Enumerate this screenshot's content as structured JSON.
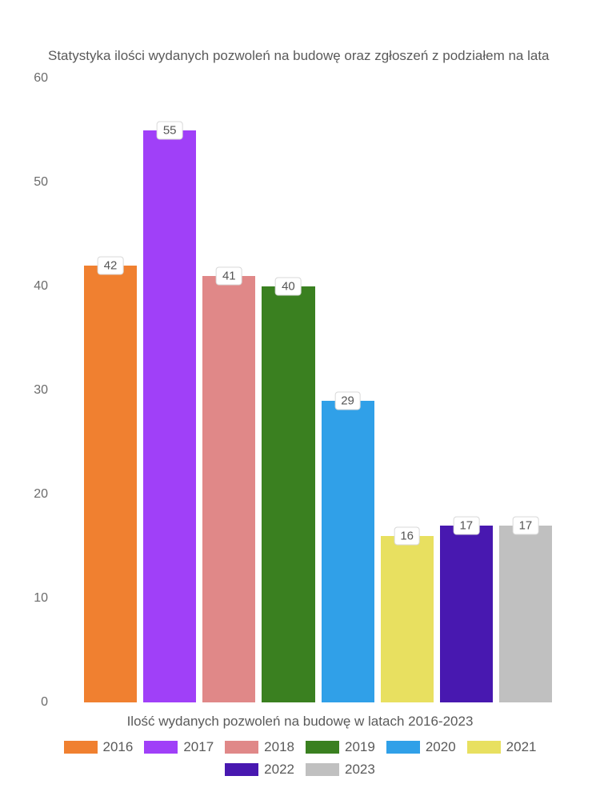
{
  "chart": {
    "type": "bar",
    "title": "Statystyka ilości wydanych pozwoleń na budowę oraz zgłoszeń z podziałem na lata",
    "x_axis_label": "Ilość wydanych pozwoleń na budowę w latach 2016-2023",
    "ylim": [
      0,
      60
    ],
    "ytick_step": 10,
    "yticks": [
      "0",
      "10",
      "20",
      "30",
      "40",
      "50",
      "60"
    ],
    "background_color": "#ffffff",
    "text_color": "#5a5a5a",
    "label_box_border": "#d8d8d8",
    "title_fontsize": 17,
    "axis_fontsize": 16,
    "legend_fontsize": 17,
    "bars": [
      {
        "year": "2016",
        "value": 42,
        "color": "#f08030"
      },
      {
        "year": "2017",
        "value": 55,
        "color": "#a040f8"
      },
      {
        "year": "2018",
        "value": 41,
        "color": "#e08888"
      },
      {
        "year": "2019",
        "value": 40,
        "color": "#3a8020"
      },
      {
        "year": "2020",
        "value": 29,
        "color": "#30a0e8"
      },
      {
        "year": "2021",
        "value": 16,
        "color": "#e8e060"
      },
      {
        "year": "2022",
        "value": 17,
        "color": "#4818b0"
      },
      {
        "year": "2023",
        "value": 17,
        "color": "#c0c0c0"
      }
    ]
  }
}
